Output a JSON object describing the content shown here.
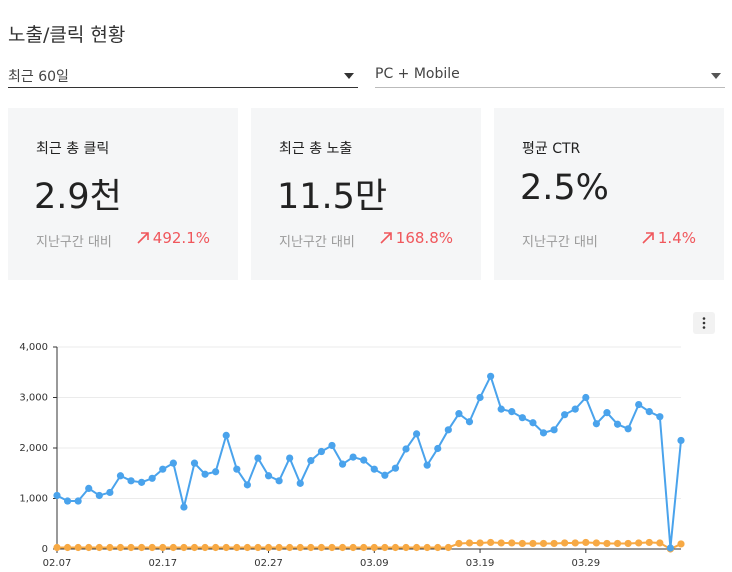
{
  "header": {
    "title": "노출/클릭 현황"
  },
  "filters": [
    "최근 60일",
    "PC + Mobile"
  ],
  "cards": [
    {
      "label": "최근 총 클릭",
      "value": "2.9천",
      "compare_label": "지난구간 대비",
      "change": "492.1%"
    },
    {
      "label": "최근 총 노출",
      "value": "11.5만",
      "compare_label": "지난구간 대비",
      "change": "168.8%"
    },
    {
      "label": "평균 CTR",
      "value": "2.5%",
      "compare_label": "지난구간 대비",
      "change": "1.4%"
    }
  ],
  "chart_data": {
    "type": "line",
    "categories": [
      "02.07",
      null,
      null,
      null,
      null,
      null,
      null,
      null,
      null,
      null,
      "02.17",
      null,
      null,
      null,
      null,
      null,
      null,
      null,
      null,
      null,
      "02.27",
      null,
      null,
      null,
      null,
      null,
      null,
      null,
      null,
      null,
      "03.09",
      null,
      null,
      null,
      null,
      null,
      null,
      null,
      null,
      null,
      "03.19",
      null,
      null,
      null,
      null,
      null,
      null,
      null,
      null,
      null,
      "03.29",
      null,
      null,
      null,
      null,
      null,
      null,
      null,
      null,
      null
    ],
    "series": [
      {
        "color": "#4aa3ec",
        "values": [
          1060,
          950,
          950,
          1200,
          1060,
          1120,
          1450,
          1350,
          1320,
          1400,
          1580,
          1700,
          830,
          1700,
          1480,
          1530,
          2250,
          1580,
          1270,
          1800,
          1450,
          1350,
          1800,
          1300,
          1750,
          1930,
          2050,
          1680,
          1820,
          1760,
          1580,
          1460,
          1600,
          1980,
          2280,
          1660,
          1990,
          2360,
          2680,
          2520,
          3000,
          3420,
          2770,
          2720,
          2600,
          2500,
          2300,
          2360,
          2660,
          2770,
          3000,
          2480,
          2700,
          2470,
          2380,
          2860,
          2720,
          2620,
          20,
          2150
        ]
      },
      {
        "color": "#f7a944",
        "values": [
          30,
          30,
          30,
          30,
          30,
          30,
          30,
          30,
          30,
          30,
          30,
          30,
          30,
          30,
          30,
          30,
          30,
          30,
          30,
          30,
          30,
          30,
          30,
          30,
          30,
          30,
          30,
          30,
          30,
          30,
          30,
          30,
          30,
          30,
          30,
          30,
          30,
          30,
          110,
          120,
          120,
          130,
          120,
          120,
          110,
          110,
          110,
          110,
          120,
          120,
          130,
          120,
          110,
          110,
          110,
          120,
          130,
          120,
          0,
          100
        ]
      }
    ],
    "ylim": [
      0,
      4000
    ],
    "yticks": [
      0,
      {
        "value": 1000,
        "label": "1,000"
      },
      {
        "value": 2000,
        "label": "2,000"
      },
      {
        "value": 3000,
        "label": "3,000"
      },
      {
        "value": 4000,
        "label": "4,000"
      }
    ],
    "grid": true
  }
}
